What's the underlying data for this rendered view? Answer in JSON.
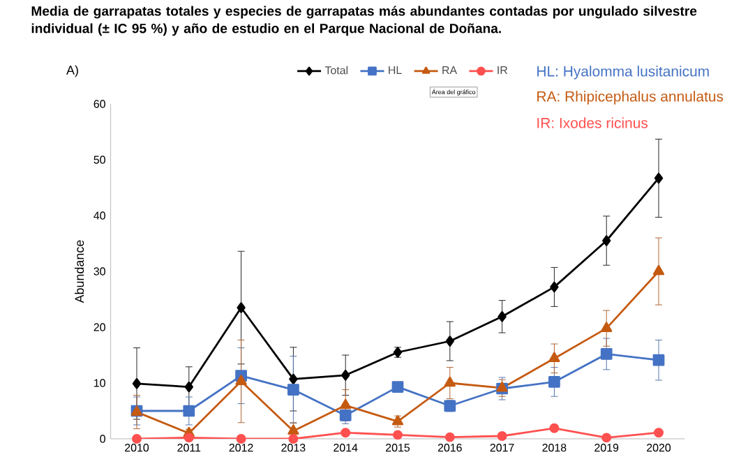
{
  "chart_data": {
    "type": "line",
    "title": "Media de garrapatas totales y especies de garrapatas más abundantes contadas por ungulado silvestre  individual (± IC 95 %) y año de estudio en el Parque Nacional de Doñana.",
    "ylabel": "Abundance",
    "categories": [
      "2010",
      "2011",
      "2012",
      "2013",
      "2014",
      "2015",
      "2016",
      "2017",
      "2018",
      "2019",
      "2020"
    ],
    "series": [
      {
        "name": "Total",
        "color": "#000000",
        "marker": "diamond",
        "values": [
          9.9,
          9.3,
          23.5,
          10.7,
          11.4,
          15.5,
          17.5,
          21.9,
          27.2,
          35.5,
          46.7
        ],
        "errors": [
          6.4,
          3.6,
          10.1,
          5.7,
          3.6,
          0.9,
          3.5,
          2.9,
          3.5,
          4.4,
          7.0
        ]
      },
      {
        "name": "HL",
        "color": "#4472c4",
        "marker": "square",
        "values": [
          5.0,
          5.0,
          11.3,
          8.8,
          4.2,
          9.3,
          5.9,
          9.0,
          10.2,
          15.2,
          14.1
        ],
        "errors": [
          2.5,
          2.5,
          5.0,
          6.0,
          1.5,
          0.5,
          1.0,
          2.0,
          2.6,
          2.8,
          3.6
        ]
      },
      {
        "name": "RA",
        "color": "#c55a11",
        "marker": "triangle",
        "values": [
          4.8,
          1.0,
          10.3,
          1.4,
          6.0,
          3.1,
          10.0,
          9.1,
          14.4,
          19.8,
          30.0
        ],
        "errors": [
          3.0,
          0.7,
          7.4,
          1.5,
          2.8,
          1.0,
          2.8,
          1.5,
          2.6,
          3.2,
          6.0
        ]
      },
      {
        "name": "IR",
        "color": "#ff5050",
        "marker": "circle",
        "values": [
          0.0,
          0.2,
          0.0,
          0.0,
          1.1,
          0.7,
          0.3,
          0.5,
          1.9,
          0.2,
          1.1
        ]
      }
    ],
    "ylim": [
      0,
      60
    ],
    "yticks": [
      0,
      10,
      20,
      30,
      40,
      50,
      60
    ],
    "grid": false,
    "legend": "top",
    "annotations": [
      "A)",
      "HL: Hyalomma lusitanicum",
      "RA: Rhipicephalus annulatus",
      "IR: Ixodes ricinus",
      "Área del gráfico"
    ]
  }
}
